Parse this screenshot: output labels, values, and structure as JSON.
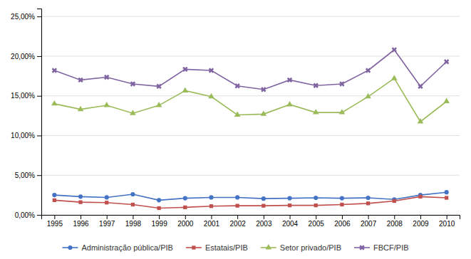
{
  "chart_data": {
    "type": "line",
    "x": [
      1995,
      1996,
      1997,
      1998,
      1999,
      2000,
      2001,
      2002,
      2003,
      2004,
      2005,
      2006,
      2007,
      2008,
      2009,
      2010
    ],
    "series": [
      {
        "name": "Administração pública/PIB",
        "color": "#4472C4",
        "marker": "circle",
        "values": [
          0.025,
          0.023,
          0.022,
          0.026,
          0.0185,
          0.021,
          0.022,
          0.022,
          0.0205,
          0.021,
          0.0215,
          0.021,
          0.0215,
          0.0195,
          0.025,
          0.0285
        ]
      },
      {
        "name": "Estatais/PIB",
        "color": "#C0504D",
        "marker": "square",
        "values": [
          0.0185,
          0.016,
          0.0155,
          0.013,
          0.0085,
          0.0095,
          0.011,
          0.0115,
          0.0115,
          0.012,
          0.012,
          0.013,
          0.0145,
          0.0175,
          0.023,
          0.0215
        ]
      },
      {
        "name": "Setor privado/PIB",
        "color": "#9BBB59",
        "marker": "triangle",
        "values": [
          0.14,
          0.133,
          0.138,
          0.128,
          0.138,
          0.1565,
          0.149,
          0.126,
          0.127,
          0.139,
          0.129,
          0.129,
          0.149,
          0.172,
          0.1175,
          0.143
        ]
      },
      {
        "name": "FBCF/PIB",
        "color": "#8064A2",
        "marker": "x",
        "values": [
          0.182,
          0.17,
          0.1735,
          0.165,
          0.162,
          0.1835,
          0.182,
          0.1625,
          0.158,
          0.17,
          0.163,
          0.165,
          0.182,
          0.208,
          0.162,
          0.193
        ]
      }
    ],
    "xlim": [
      1994.5,
      2010.5
    ],
    "xticks": [
      1995,
      1996,
      1997,
      1998,
      1999,
      2000,
      2001,
      2002,
      2003,
      2004,
      2005,
      2006,
      2007,
      2008,
      2009,
      2010
    ],
    "ylim": [
      0,
      0.26
    ],
    "yticks": [
      {
        "value": 0,
        "label": "0,00%"
      },
      {
        "value": 0.05,
        "label": "5,00%"
      },
      {
        "value": 0.1,
        "label": "10,00%"
      },
      {
        "value": 0.15,
        "label": "15,00%"
      },
      {
        "value": 0.2,
        "label": "20,00%"
      },
      {
        "value": 0.25,
        "label": "25,00%"
      }
    ],
    "grid": "y",
    "legend": "bottom"
  }
}
